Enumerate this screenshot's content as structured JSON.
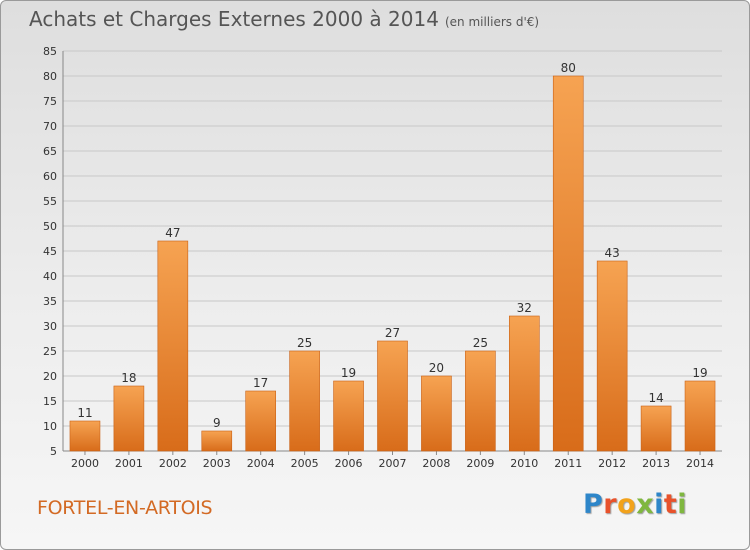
{
  "header": {
    "title": "Achats et Charges Externes 2000 à 2014",
    "subtitle": "(en milliers d'€)"
  },
  "footer": {
    "commune": "FORTEL-EN-ARTOIS",
    "logo_letters": [
      "P",
      "r",
      "o",
      "x",
      "i",
      "t",
      "i"
    ],
    "logo_colors": [
      "#2e86c9",
      "#e8522b",
      "#f2a21b",
      "#7fb73f",
      "#2e86c9",
      "#e8522b",
      "#7fb73f"
    ]
  },
  "colors": {
    "bar_light": "#f6a352",
    "bar_dark": "#d86c1a",
    "grid": "#c8c8c8",
    "axis_text": "#333333"
  },
  "chart_data": {
    "type": "bar",
    "categories": [
      "2000",
      "2001",
      "2002",
      "2003",
      "2004",
      "2005",
      "2006",
      "2007",
      "2008",
      "2009",
      "2010",
      "2011",
      "2012",
      "2013",
      "2014"
    ],
    "values": [
      11,
      18,
      47,
      9,
      17,
      25,
      19,
      27,
      20,
      25,
      32,
      80,
      43,
      14,
      19
    ],
    "ylim": [
      5,
      85
    ],
    "yticks": [
      5,
      10,
      15,
      20,
      25,
      30,
      35,
      40,
      45,
      50,
      55,
      60,
      65,
      70,
      75,
      80,
      85
    ],
    "grid": true,
    "data_labels": true
  }
}
